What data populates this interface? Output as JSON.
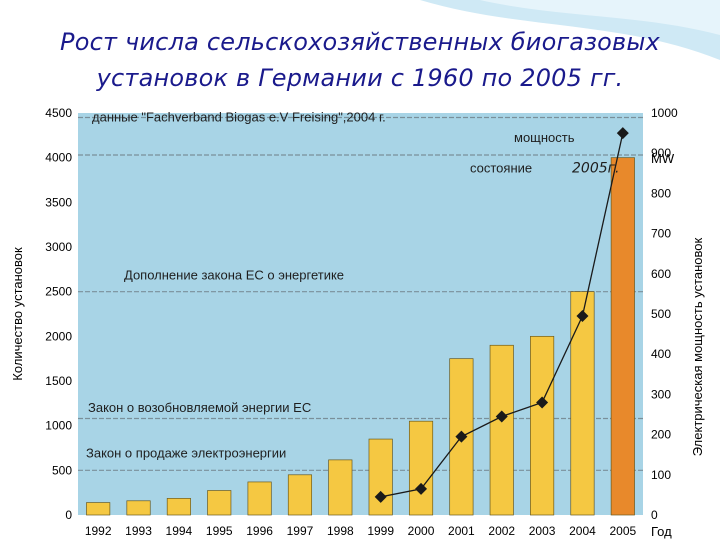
{
  "slide": {
    "title_line1": "Рост числа сельскохозяйственных биогазовых",
    "title_line2": "установок в Германии с 1960 по 2005 гг."
  },
  "chart_data": {
    "type": "bar",
    "categories": [
      "1992",
      "1993",
      "1994",
      "1995",
      "1996",
      "1997",
      "1998",
      "1999",
      "2000",
      "2001",
      "2002",
      "2003",
      "2004",
      "2005"
    ],
    "series": [
      {
        "values": [
          139,
          159,
          186,
          274,
          370,
          450,
          617,
          850,
          1050,
          1750,
          1900,
          2000,
          2500,
          4000
        ],
        "color": "#f5c842",
        "highlight_color": "#e8892b"
      },
      {
        "name": "мощность",
        "axis": "right",
        "x": [
          "1999",
          "2000",
          "2001",
          "2002",
          "2003",
          "2004",
          "2005"
        ],
        "values": [
          45,
          65,
          195,
          245,
          280,
          495,
          950
        ],
        "marker": "diamond",
        "color": "#1a1a1a"
      }
    ],
    "ylabel": "Количество установок",
    "y2label": "Электрическая мощность установок",
    "xlabel": "Год",
    "ylim": [
      0,
      4500
    ],
    "y2lim": [
      0,
      1000
    ],
    "yticks": [
      "0",
      "500",
      "1000",
      "1500",
      "2000",
      "2500",
      "3000",
      "3500",
      "4000",
      "4500"
    ],
    "y2ticks": [
      "0",
      "100",
      "200",
      "300",
      "400",
      "500",
      "600",
      "700",
      "800",
      "900",
      "1000"
    ],
    "y2unit": "MW",
    "grid": false,
    "plot_bg": "#a8d4e6",
    "annotations": [
      {
        "text": "данные \"Fachverband Biogas e.V Freising\",2004 г.",
        "y": 4450
      },
      {
        "text": "мощность",
        "y": 4220
      },
      {
        "text": "состояние",
        "y": 3880
      },
      {
        "text": "2005г.",
        "y": 3880,
        "handwritten": true
      },
      {
        "text": "Дополнение закона ЕС о энергетике",
        "y": 2680
      },
      {
        "text": "Закон о возобновляемой энергии ЕС",
        "y": 1200
      },
      {
        "text": "Закон о продаже электроэнергии",
        "y": 690
      }
    ]
  }
}
